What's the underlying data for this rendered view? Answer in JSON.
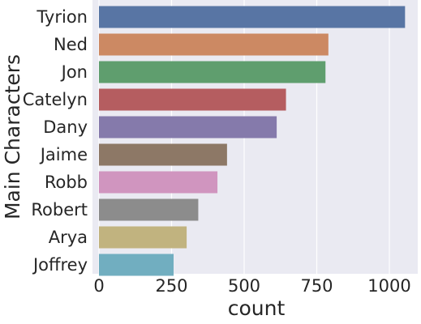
{
  "chart_data": {
    "type": "bar",
    "orientation": "horizontal",
    "title": "",
    "xlabel": "count",
    "ylabel": "Main Characters",
    "categories": [
      "Tyrion",
      "Ned",
      "Jon",
      "Catelyn",
      "Dany",
      "Jaime",
      "Robb",
      "Robert",
      "Arya",
      "Joffrey"
    ],
    "values": [
      1054,
      790,
      780,
      644,
      612,
      441,
      408,
      342,
      302,
      257
    ],
    "xlim": [
      0,
      1095
    ],
    "xticks": [
      0,
      250,
      500,
      750,
      1000
    ],
    "grid": true,
    "background_color": "#EAEAF2",
    "grid_color": "#FFFFFF",
    "colors": [
      "#5875A4",
      "#CC8963",
      "#5F9E6E",
      "#B55D60",
      "#857AAB",
      "#8D7866",
      "#D095BF",
      "#8C8C8C",
      "#C1B37F",
      "#71AEC0"
    ]
  }
}
